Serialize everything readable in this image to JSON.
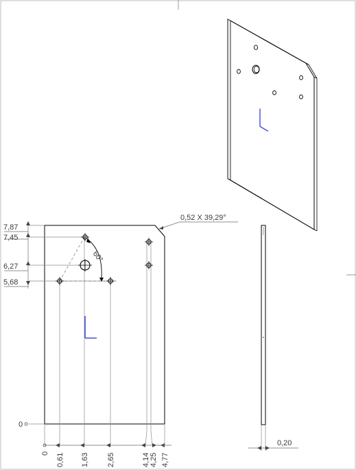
{
  "drawing": {
    "front_view": {
      "vertical_dimensions": [
        "7,87",
        "7,45",
        "6,27",
        "5,68",
        "0"
      ],
      "horizontal_dimensions": [
        "0",
        "0,61",
        "1,63",
        "2,65",
        "4,14",
        "4,25",
        "4,77"
      ],
      "angle_label": "60°",
      "chamfer_label": "0,52 X 39,29°"
    },
    "side_view": {
      "thickness_label": "0,20"
    }
  },
  "colors": {
    "origin_axis": "#1f2fd1",
    "outline": "#000000",
    "dimension": "#444444"
  }
}
